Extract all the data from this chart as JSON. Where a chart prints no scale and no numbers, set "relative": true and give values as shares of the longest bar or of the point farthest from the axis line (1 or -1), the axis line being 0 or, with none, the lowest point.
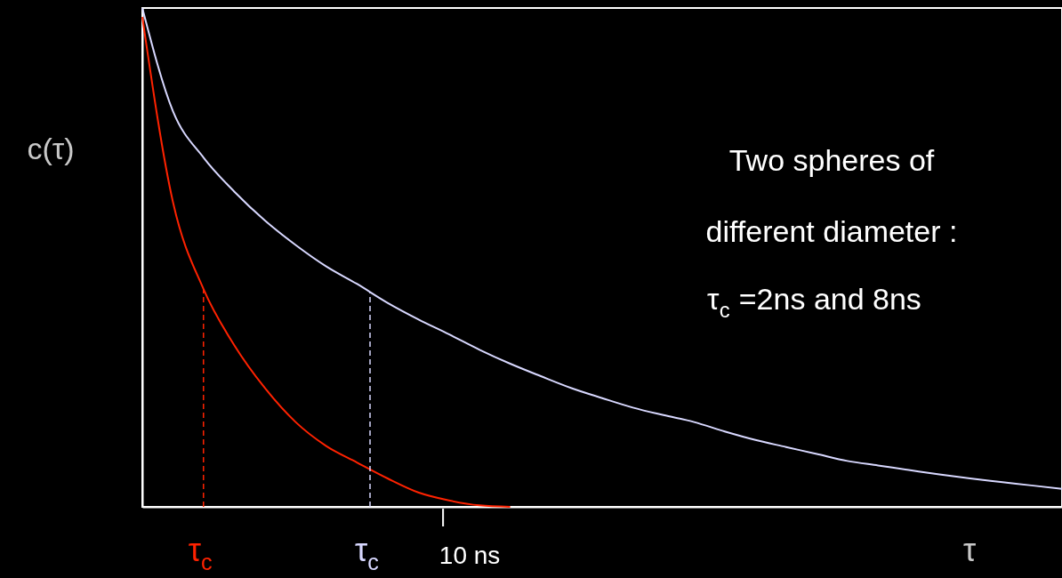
{
  "chart_data": {
    "type": "line",
    "relative": true,
    "ylabel": "c(τ)",
    "xlabel": "τ",
    "grid": false,
    "line_style": "solid",
    "marker": "none",
    "categories": [
      null,
      null,
      null,
      null,
      null,
      null,
      null,
      null,
      null,
      null,
      null,
      null,
      null,
      null,
      null,
      null,
      null,
      null,
      null,
      null,
      null,
      null,
      null,
      null,
      null,
      null,
      null,
      null,
      null,
      null,
      null
    ],
    "series": [
      {
        "color": "#ff2200",
        "values": [
          0.982,
          0.611,
          0.436,
          0.324,
          0.238,
          0.17,
          0.122,
          0.089,
          0.057,
          0.029,
          0.013,
          0.003,
          0,
          null,
          null,
          null,
          null,
          null,
          null,
          null,
          null,
          null,
          null,
          null,
          null,
          null,
          null,
          null,
          null,
          null,
          null
        ]
      },
      {
        "color": "#d8d8ff",
        "values": [
          1,
          0.793,
          0.7,
          0.632,
          0.574,
          0.525,
          0.482,
          0.447,
          0.409,
          0.376,
          0.346,
          0.315,
          0.287,
          0.262,
          0.238,
          0.218,
          0.199,
          0.184,
          0.17,
          0.151,
          0.134,
          0.12,
          0.106,
          0.092,
          0.083,
          0.074,
          0.065,
          0.057,
          0.05,
          0.043,
          0.036
        ]
      }
    ],
    "ref_lines": [
      {
        "axis": "x",
        "label": "τ$_{c}$",
        "color": "#ff2200",
        "line_style": "dashed"
      },
      {
        "axis": "x",
        "label": "τ$_{c}$",
        "color": "#d8d8ff",
        "line_style": "dashed"
      }
    ],
    "annotations": [
      "10 ns",
      "Two spheres of",
      "different diameter :",
      "τ$_{c}$ =2ns and 8ns"
    ]
  }
}
